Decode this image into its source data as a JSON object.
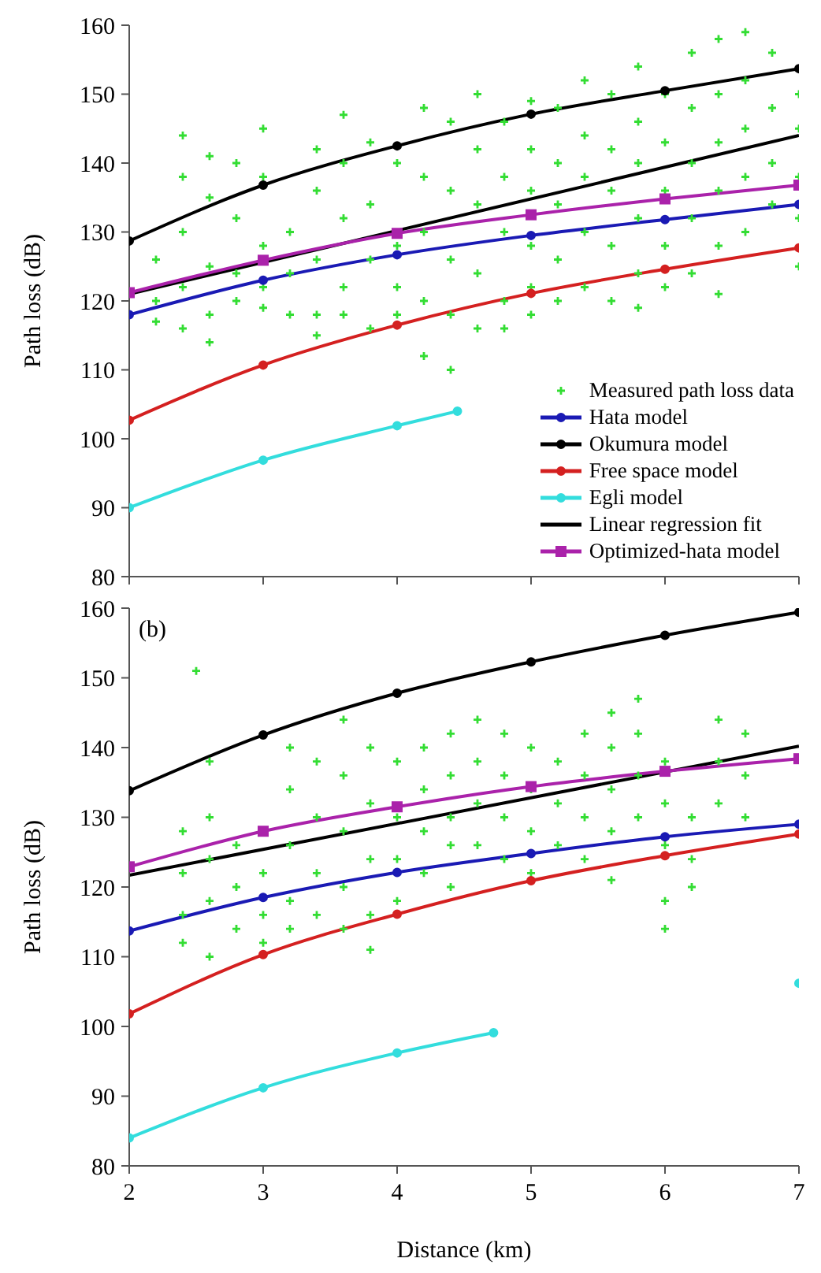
{
  "chart_data": [
    {
      "type": "line",
      "ylabel": "Path loss (dB)",
      "xlim": [
        2,
        7
      ],
      "xticks": [
        2,
        3,
        4,
        5,
        6,
        7
      ],
      "ylim": [
        80,
        160
      ],
      "yticks": [
        80,
        90,
        100,
        110,
        120,
        130,
        140,
        150,
        160
      ],
      "tick_labels": "y",
      "legend": "bottom right",
      "series": [
        {
          "type": "scatter",
          "name": "Measured path loss data",
          "color": "#33dd33",
          "marker": "cross",
          "x": [
            2.2,
            2.2,
            2.2,
            2.4,
            2.4,
            2.4,
            2.4,
            2.4,
            2.6,
            2.6,
            2.6,
            2.6,
            2.6,
            2.8,
            2.8,
            2.8,
            2.8,
            3.0,
            3.0,
            3.0,
            3.0,
            3.0,
            3.2,
            3.2,
            3.2,
            3.4,
            3.4,
            3.4,
            3.4,
            3.4,
            3.6,
            3.6,
            3.6,
            3.6,
            3.6,
            3.8,
            3.8,
            3.8,
            3.8,
            4.0,
            4.0,
            4.0,
            4.0,
            4.2,
            4.2,
            4.2,
            4.2,
            4.2,
            4.4,
            4.4,
            4.4,
            4.4,
            4.4,
            4.6,
            4.6,
            4.6,
            4.6,
            4.6,
            4.8,
            4.8,
            4.8,
            4.8,
            4.8,
            5.0,
            5.0,
            5.0,
            5.0,
            5.0,
            5.0,
            5.2,
            5.2,
            5.2,
            5.2,
            5.2,
            5.4,
            5.4,
            5.4,
            5.4,
            5.4,
            5.6,
            5.6,
            5.6,
            5.6,
            5.6,
            5.8,
            5.8,
            5.8,
            5.8,
            5.8,
            5.8,
            6.0,
            6.0,
            6.0,
            6.0,
            6.0,
            6.2,
            6.2,
            6.2,
            6.2,
            6.2,
            6.4,
            6.4,
            6.4,
            6.4,
            6.4,
            6.4,
            6.6,
            6.6,
            6.6,
            6.6,
            6.6,
            6.8,
            6.8,
            6.8,
            6.8,
            7.0,
            7.0,
            7.0,
            7.0,
            7.0
          ],
          "values": [
            126,
            120,
            117,
            138,
            130,
            122,
            116,
            144,
            135,
            125,
            118,
            114,
            141,
            140,
            132,
            124,
            120,
            145,
            138,
            128,
            122,
            119,
            130,
            124,
            118,
            142,
            136,
            126,
            118,
            115,
            147,
            140,
            132,
            122,
            118,
            143,
            134,
            126,
            116,
            140,
            128,
            122,
            118,
            148,
            138,
            130,
            120,
            112,
            146,
            136,
            126,
            118,
            110,
            150,
            142,
            134,
            124,
            116,
            146,
            138,
            130,
            120,
            116,
            149,
            142,
            136,
            128,
            122,
            118,
            148,
            140,
            134,
            126,
            120,
            152,
            144,
            138,
            130,
            122,
            150,
            142,
            136,
            128,
            120,
            154,
            146,
            140,
            132,
            124,
            119,
            150,
            143,
            136,
            128,
            122,
            156,
            148,
            140,
            132,
            124,
            158,
            150,
            143,
            136,
            128,
            121,
            159,
            152,
            145,
            138,
            130,
            156,
            148,
            140,
            134,
            150,
            145,
            138,
            132,
            125
          ]
        },
        {
          "type": "line",
          "name": "Hata model",
          "color": "#1a1ab4",
          "marker": "circle",
          "x": [
            2,
            3,
            4,
            5,
            6,
            7
          ],
          "values": [
            118,
            123,
            126.7,
            129.5,
            131.8,
            134
          ]
        },
        {
          "type": "line",
          "name": "Okumura model",
          "color": "#000000",
          "marker": "circle",
          "x": [
            2,
            3,
            4,
            5,
            6,
            7
          ],
          "values": [
            128.7,
            136.8,
            142.5,
            147.1,
            150.5,
            153.7
          ]
        },
        {
          "type": "line",
          "name": "Free space model",
          "color": "#d42020",
          "marker": "circle",
          "x": [
            2,
            3,
            4,
            5,
            6,
            7
          ],
          "values": [
            102.7,
            110.7,
            116.5,
            121.1,
            124.6,
            127.7
          ]
        },
        {
          "type": "line",
          "name": "Egli model",
          "color": "#33dddd",
          "marker": "circle",
          "x": [
            2,
            3,
            4,
            4.45
          ],
          "values": [
            90,
            96.9,
            101.9,
            104
          ]
        },
        {
          "type": "line",
          "name": "Linear regression fit",
          "color": "#000000",
          "marker": "none",
          "x": [
            2,
            7
          ],
          "values": [
            121,
            144
          ]
        },
        {
          "type": "line",
          "name": "Optimized-hata model",
          "color": "#aa22aa",
          "marker": "square",
          "x": [
            2,
            3,
            4,
            5,
            6,
            7
          ],
          "values": [
            121.2,
            125.9,
            129.8,
            132.5,
            134.8,
            136.8
          ]
        }
      ]
    },
    {
      "type": "line",
      "xlabel": "Distance (km)",
      "ylabel": "Path loss (dB)",
      "annotations": [
        "(b)"
      ],
      "xlim": [
        2,
        7
      ],
      "xticks": [
        2,
        3,
        4,
        5,
        6,
        7
      ],
      "ylim": [
        80,
        160
      ],
      "yticks": [
        80,
        90,
        100,
        110,
        120,
        130,
        140,
        150,
        160
      ],
      "series": [
        {
          "type": "scatter",
          "color": "#33dd33",
          "marker": "cross",
          "x": [
            2.5,
            2.4,
            2.4,
            2.4,
            2.4,
            2.6,
            2.6,
            2.6,
            2.6,
            2.6,
            2.8,
            2.8,
            2.8,
            3.0,
            3.0,
            3.0,
            3.2,
            3.2,
            3.2,
            3.2,
            3.2,
            3.4,
            3.4,
            3.4,
            3.4,
            3.6,
            3.6,
            3.6,
            3.6,
            3.6,
            3.8,
            3.8,
            3.8,
            3.8,
            3.8,
            4.0,
            4.0,
            4.0,
            4.0,
            4.2,
            4.2,
            4.2,
            4.2,
            4.4,
            4.4,
            4.4,
            4.4,
            4.4,
            4.6,
            4.6,
            4.6,
            4.6,
            4.8,
            4.8,
            4.8,
            4.8,
            5.0,
            5.0,
            5.0,
            5.0,
            5.2,
            5.2,
            5.2,
            5.4,
            5.4,
            5.4,
            5.4,
            5.6,
            5.6,
            5.6,
            5.6,
            5.6,
            5.8,
            5.8,
            5.8,
            5.8,
            6.0,
            6.0,
            6.0,
            6.0,
            6.0,
            6.2,
            6.2,
            6.2,
            6.4,
            6.4,
            6.4,
            6.6,
            6.6,
            6.6
          ],
          "values": [
            151,
            128,
            122,
            116,
            112,
            138,
            130,
            124,
            118,
            110,
            126,
            120,
            114,
            122,
            116,
            112,
            140,
            134,
            126,
            118,
            114,
            138,
            130,
            122,
            116,
            144,
            136,
            128,
            120,
            114,
            140,
            132,
            124,
            116,
            111,
            138,
            130,
            124,
            118,
            140,
            134,
            128,
            122,
            142,
            136,
            130,
            126,
            120,
            144,
            138,
            132,
            126,
            142,
            136,
            130,
            124,
            140,
            134,
            128,
            122,
            138,
            132,
            126,
            142,
            136,
            130,
            124,
            145,
            140,
            134,
            128,
            121,
            147,
            142,
            136,
            130,
            138,
            132,
            126,
            118,
            114,
            130,
            124,
            120,
            144,
            138,
            132,
            142,
            136,
            130
          ]
        },
        {
          "type": "line",
          "color": "#1a1ab4",
          "marker": "circle",
          "x": [
            2,
            3,
            4,
            5,
            6,
            7
          ],
          "values": [
            113.7,
            118.5,
            122.1,
            124.8,
            127.2,
            129
          ]
        },
        {
          "type": "line",
          "color": "#000000",
          "marker": "circle",
          "x": [
            2,
            3,
            4,
            5,
            6,
            7
          ],
          "values": [
            133.8,
            141.8,
            147.8,
            152.3,
            156.1,
            159.4
          ]
        },
        {
          "type": "line",
          "color": "#d42020",
          "marker": "circle",
          "x": [
            2,
            3,
            4,
            5,
            6,
            7
          ],
          "values": [
            101.8,
            110.3,
            116.1,
            120.9,
            124.5,
            127.6
          ]
        },
        {
          "type": "line",
          "color": "#33dddd",
          "marker": "circle",
          "x": [
            2,
            3,
            4,
            4.72,
            5,
            6,
            7
          ],
          "values": [
            84,
            91.2,
            96.2,
            99.1,
            null,
            null,
            106.2
          ]
        },
        {
          "type": "line",
          "color": "#000000",
          "marker": "none",
          "x": [
            2,
            7
          ],
          "values": [
            121.7,
            140.2
          ]
        },
        {
          "type": "line",
          "color": "#aa22aa",
          "marker": "square",
          "x": [
            2,
            3,
            4,
            5,
            6,
            7
          ],
          "values": [
            122.9,
            128,
            131.5,
            134.4,
            136.6,
            138.4
          ]
        }
      ]
    }
  ]
}
